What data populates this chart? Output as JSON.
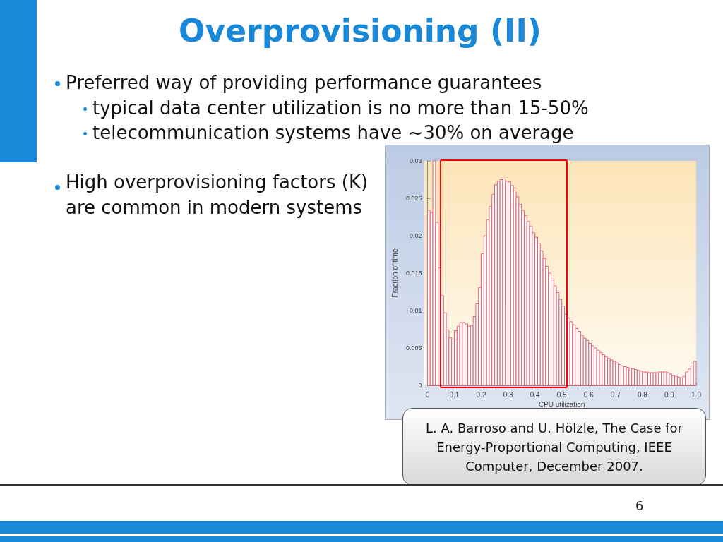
{
  "chart_data": {
    "type": "histogram",
    "title": "Overprovisioning (II)",
    "xlabel": "CPU utilization",
    "ylabel": "Fraction of time",
    "bins": [
      0,
      0.01,
      0.02,
      0.03,
      0.04,
      0.05,
      0.06,
      0.07,
      0.08,
      0.09,
      0.1,
      0.11,
      0.12,
      0.13,
      0.14,
      0.15,
      0.16,
      0.17,
      0.18,
      0.19,
      0.2,
      0.21,
      0.22,
      0.23,
      0.24,
      0.25,
      0.26,
      0.27,
      0.28,
      0.29,
      0.3,
      0.31,
      0.32,
      0.33,
      0.34,
      0.35,
      0.36,
      0.37,
      0.38,
      0.39,
      0.4,
      0.41,
      0.42,
      0.43,
      0.44,
      0.45,
      0.46,
      0.47,
      0.48,
      0.49,
      0.5,
      0.51,
      0.52,
      0.53,
      0.54,
      0.55,
      0.56,
      0.57,
      0.58,
      0.59,
      0.6,
      0.61,
      0.62,
      0.63,
      0.64,
      0.65,
      0.66,
      0.67,
      0.68,
      0.69,
      0.7,
      0.71,
      0.72,
      0.73,
      0.74,
      0.75,
      0.76,
      0.77,
      0.78,
      0.79,
      0.8,
      0.81,
      0.82,
      0.83,
      0.84,
      0.85,
      0.86,
      0.87,
      0.88,
      0.89,
      0.9,
      0.91,
      0.92,
      0.93,
      0.94,
      0.95,
      0.96,
      0.97,
      0.98,
      0.99,
      1
    ],
    "values": [
      0.0234,
      0.0231,
      0.03,
      0.0218,
      0.0157,
      0.012,
      0.0097,
      0.0074,
      0.0064,
      0.0062,
      0.0073,
      0.0079,
      0.0084,
      0.0084,
      0.0082,
      0.0079,
      0.008,
      0.0092,
      0.0109,
      0.0131,
      0.0176,
      0.02,
      0.0221,
      0.0239,
      0.0255,
      0.0268,
      0.0273,
      0.0275,
      0.0276,
      0.0273,
      0.0272,
      0.0267,
      0.026,
      0.0252,
      0.0242,
      0.0234,
      0.0227,
      0.0219,
      0.0213,
      0.0204,
      0.0198,
      0.019,
      0.018,
      0.017,
      0.0159,
      0.015,
      0.0142,
      0.0133,
      0.0124,
      0.0115,
      0.0106,
      0.0095,
      0.009,
      0.0085,
      0.0081,
      0.0076,
      0.0072,
      0.0067,
      0.0063,
      0.006,
      0.0056,
      0.0053,
      0.005,
      0.0047,
      0.0044,
      0.0041,
      0.0038,
      0.0036,
      0.0034,
      0.0032,
      0.003,
      0.0028,
      0.0026,
      0.0025,
      0.0024,
      0.0023,
      0.0022,
      0.0021,
      0.002,
      0.0019,
      0.0018,
      0.0018,
      0.0017,
      0.0017,
      0.0017,
      0.0017,
      0.0018,
      0.0018,
      0.0018,
      0.0017,
      0.0015,
      0.0013,
      0.0012,
      0.0011,
      0.001,
      0.0012,
      0.0018,
      0.0022,
      0.0026,
      0.0032
    ],
    "color": "#e06070",
    "xlim": [
      0,
      1
    ],
    "xticks": [
      0,
      0.1,
      0.2,
      0.3,
      0.4,
      0.5,
      0.6,
      0.7,
      0.8,
      0.9,
      {
        "value": 1,
        "label": "1.0"
      }
    ],
    "ylim": [
      0,
      0.03
    ],
    "yticks": [
      0,
      0.005,
      0.01,
      0.015,
      0.02,
      0.025,
      0.03
    ],
    "grid": false,
    "annotations": [
      "Preferred way of providing performance guarantees",
      "typical data center utilization is no more than 15-50%",
      "telecommunication systems have ~30% on average",
      "High overprovisioning factors (K) are common in modern systems",
      "L. A. Barroso and U. Hölzle, The Case for Energy-Proportional Computing, IEEE Computer, December 2007.",
      "6"
    ]
  }
}
